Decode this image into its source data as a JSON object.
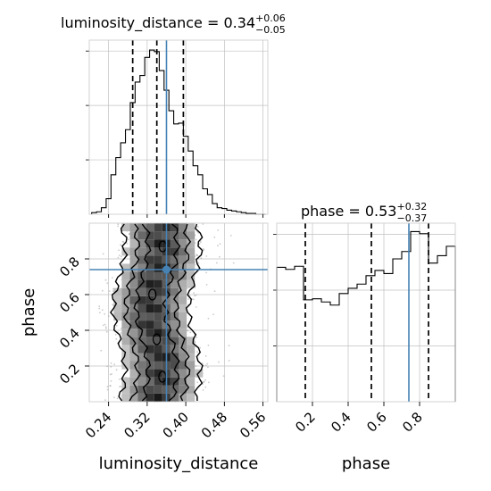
{
  "chart_data": [
    {
      "type": "histogram",
      "panel": "luminosity_distance marginal",
      "title": {
        "param": "luminosity_distance",
        "median": "0.34",
        "upper": "+0.06",
        "lower": "−0.05"
      },
      "xlim": [
        0.2,
        0.57
      ],
      "x_ticks": [
        0.24,
        0.32,
        0.4,
        0.48,
        0.56
      ],
      "bin_edges": [
        0.205,
        0.215,
        0.225,
        0.235,
        0.245,
        0.255,
        0.265,
        0.275,
        0.285,
        0.295,
        0.305,
        0.315,
        0.325,
        0.335,
        0.345,
        0.355,
        0.365,
        0.375,
        0.385,
        0.395,
        0.405,
        0.415,
        0.425,
        0.435,
        0.445,
        0.455,
        0.465,
        0.475,
        0.485,
        0.495,
        0.505,
        0.515,
        0.525,
        0.535,
        0.545,
        0.555,
        0.565
      ],
      "counts": [
        2,
        3,
        8,
        19,
        48,
        69,
        87,
        103,
        136,
        161,
        169,
        191,
        200,
        198,
        175,
        151,
        126,
        110,
        111,
        95,
        77,
        59,
        48,
        31,
        24,
        13,
        8,
        7,
        5,
        4,
        3,
        2,
        1,
        1,
        0,
        0
      ],
      "quantile_lines": [
        0.29,
        0.34,
        0.395
      ],
      "truth": 0.36,
      "grid": true
    },
    {
      "type": "histogram",
      "panel": "phase marginal",
      "title": {
        "param": "phase",
        "median": "0.53",
        "upper": "+0.32",
        "lower": "−0.37"
      },
      "xlim": [
        0.0,
        1.0
      ],
      "x_ticks": [
        0.2,
        0.4,
        0.6,
        0.8
      ],
      "bin_edges": [
        0.0,
        0.05,
        0.1,
        0.15,
        0.2,
        0.25,
        0.3,
        0.35,
        0.4,
        0.45,
        0.5,
        0.55,
        0.6,
        0.65,
        0.7,
        0.75,
        0.8,
        0.85,
        0.9,
        0.95,
        1.0
      ],
      "counts": [
        128,
        126,
        129,
        97,
        98,
        95,
        92,
        103,
        108,
        112,
        120,
        125,
        122,
        136,
        143,
        162,
        160,
        132,
        139,
        148
      ],
      "quantile_lines": [
        0.16,
        0.53,
        0.85
      ],
      "truth": 0.74,
      "grid": true
    },
    {
      "type": "heatmap",
      "panel": "2D joint",
      "x_param": "luminosity_distance",
      "y_param": "phase",
      "xlabel": "luminosity_distance",
      "ylabel": "phase",
      "xlim": [
        0.2,
        0.57
      ],
      "ylim": [
        0.0,
        1.0
      ],
      "x_ticks": [
        0.24,
        0.32,
        0.4,
        0.48,
        0.56
      ],
      "y_ticks": [
        0.2,
        0.4,
        0.6,
        0.8
      ],
      "truth": {
        "x": 0.36,
        "y": 0.74
      },
      "contour_levels": 4,
      "grid": true
    }
  ],
  "labels": {
    "title_hist1": "luminosity_distance = 0.34",
    "title_hist2": "phase = 0.53",
    "xlabel_left": "luminosity_distance",
    "xlabel_right": "phase",
    "ylabel_left": "phase"
  },
  "colors": {
    "truth": "#4682b4",
    "hist": "#000000",
    "grid": "#c0c0c0",
    "scatter": "#a0a0a0"
  }
}
